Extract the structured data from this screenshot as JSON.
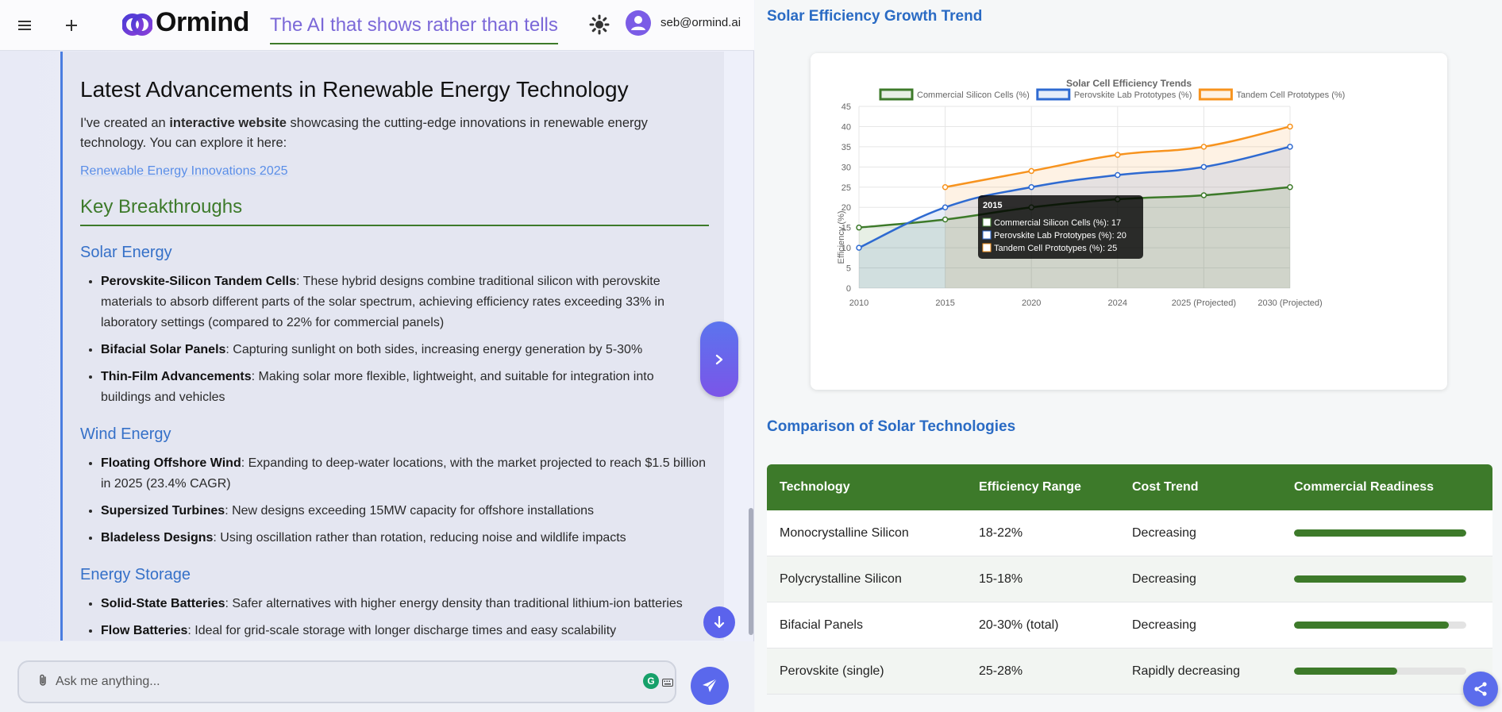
{
  "header": {
    "brand": "Ormind",
    "tagline": "The AI that shows rather than tells",
    "user_email": "seb@ormind.ai"
  },
  "message": {
    "title": "Latest Advancements in Renewable Energy Technology",
    "intro_1": "I've created an ",
    "intro_bold": "interactive website",
    "intro_2": " showcasing the cutting-edge innovations in renewable energy technology. You can explore it here:",
    "link": "Renewable Energy Innovations 2025",
    "section_title": "Key Breakthroughs",
    "sections": [
      {
        "title": "Solar Energy",
        "items": [
          {
            "bold": "Perovskite-Silicon Tandem Cells",
            "text": ": These hybrid designs combine traditional silicon with perovskite materials to absorb different parts of the solar spectrum, achieving efficiency rates exceeding 33% in laboratory settings (compared to 22% for commercial panels)"
          },
          {
            "bold": "Bifacial Solar Panels",
            "text": ": Capturing sunlight on both sides, increasing energy generation by 5-30%"
          },
          {
            "bold": "Thin-Film Advancements",
            "text": ": Making solar more flexible, lightweight, and suitable for integration into buildings and vehicles"
          }
        ]
      },
      {
        "title": "Wind Energy",
        "items": [
          {
            "bold": "Floating Offshore Wind",
            "text": ": Expanding to deep-water locations, with the market projected to reach $1.5 billion in 2025 (23.4% CAGR)"
          },
          {
            "bold": "Supersized Turbines",
            "text": ": New designs exceeding 15MW capacity for offshore installations"
          },
          {
            "bold": "Bladeless Designs",
            "text": ": Using oscillation rather than rotation, reducing noise and wildlife impacts"
          }
        ]
      },
      {
        "title": "Energy Storage",
        "items": [
          {
            "bold": "Solid-State Batteries",
            "text": ": Safer alternatives with higher energy density than traditional lithium-ion batteries"
          },
          {
            "bold": "Flow Batteries",
            "text": ": Ideal for grid-scale storage with longer discharge times and easy scalability"
          }
        ]
      }
    ]
  },
  "composer": {
    "placeholder": "Ask me anything..."
  },
  "right": {
    "trend_heading": "Solar Efficiency Growth Trend",
    "comparison_heading": "Comparison of Solar Technologies",
    "table": {
      "headers": [
        "Technology",
        "Efficiency Range",
        "Cost Trend",
        "Commercial Readiness"
      ],
      "rows": [
        {
          "tech": "Monocrystalline Silicon",
          "range": "18-22%",
          "cost": "Decreasing",
          "readiness": 1.0
        },
        {
          "tech": "Polycrystalline Silicon",
          "range": "15-18%",
          "cost": "Decreasing",
          "readiness": 1.0
        },
        {
          "tech": "Bifacial Panels",
          "range": "20-30% (total)",
          "cost": "Decreasing",
          "readiness": 0.9
        },
        {
          "tech": "Perovskite (single)",
          "range": "25-28%",
          "cost": "Rapidly decreasing",
          "readiness": 0.6
        }
      ]
    }
  },
  "chart_data": {
    "type": "line",
    "title": "Solar Cell Efficiency Trends",
    "xlabel": "",
    "ylabel": "Efficiency (%)",
    "categories": [
      "2010",
      "2015",
      "2020",
      "2024",
      "2025 (Projected)",
      "2030 (Projected)"
    ],
    "ylim": [
      0,
      45
    ],
    "yticks": [
      0,
      5,
      10,
      15,
      20,
      25,
      30,
      35,
      40,
      45
    ],
    "grid": true,
    "legend": "top",
    "series": [
      {
        "name": "Commercial Silicon Cells (%)",
        "color": "#3d7a2a",
        "fill": "rgba(61,122,42,0.12)",
        "values": [
          15,
          17,
          20,
          22,
          23,
          25
        ]
      },
      {
        "name": "Perovskite Lab Prototypes (%)",
        "color": "#2e6ad1",
        "fill": "rgba(46,106,209,0.12)",
        "values": [
          10,
          20,
          25,
          28,
          30,
          35
        ]
      },
      {
        "name": "Tandem Cell Prototypes (%)",
        "color": "#f7931e",
        "fill": "rgba(247,147,30,0.12)",
        "values": [
          null,
          25,
          29,
          33,
          35,
          40
        ]
      }
    ],
    "tooltip": {
      "title": "2015",
      "lines": [
        "Commercial Silicon Cells (%): 17",
        "Perovskite Lab Prototypes (%): 20",
        "Tandem Cell Prototypes (%): 25"
      ]
    }
  }
}
